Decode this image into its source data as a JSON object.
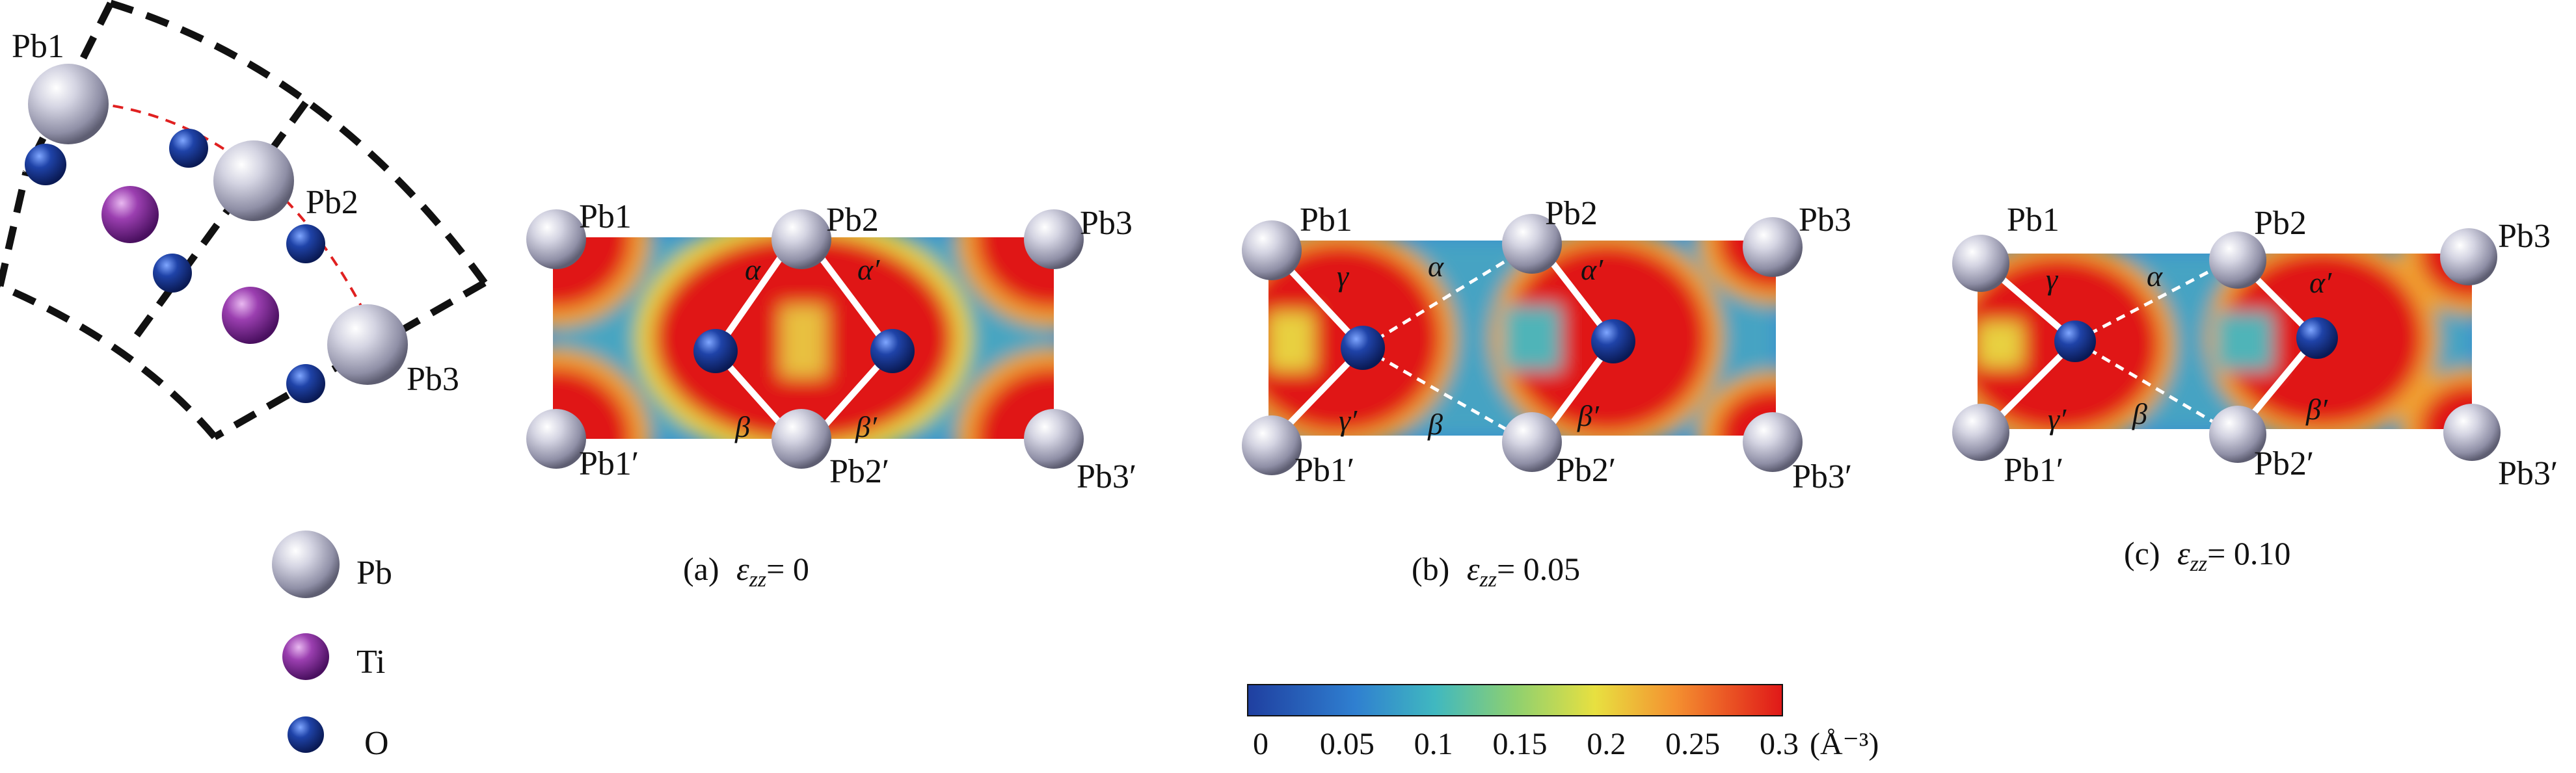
{
  "legend": {
    "items": [
      {
        "label": "Pb",
        "color": "#b9b9cc"
      },
      {
        "label": "Ti",
        "color": "#8a2a9e"
      },
      {
        "label": "O",
        "color": "#1a3a8c"
      }
    ]
  },
  "unit_cell": {
    "labels": [
      "Pb1",
      "Pb2",
      "Pb3"
    ]
  },
  "panels": [
    {
      "caption_prefix": "(a)",
      "symbol": "ε",
      "subscript": "zz",
      "value": "= 0",
      "atom_labels": {
        "tl": "Pb1",
        "tm": "Pb2",
        "tr": "Pb3",
        "bl": "Pb1′",
        "bm": "Pb2′",
        "br": "Pb3′"
      },
      "angles": {
        "a": "α",
        "a2": "α′",
        "b": "β",
        "b2": "β′"
      }
    },
    {
      "caption_prefix": "(b)",
      "symbol": "ε",
      "subscript": "zz",
      "value": "= 0.05",
      "atom_labels": {
        "tl": "Pb1",
        "tm": "Pb2",
        "tr": "Pb3",
        "bl": "Pb1′",
        "bm": "Pb2′",
        "br": "Pb3′"
      },
      "angles": {
        "g": "γ",
        "g2": "γ′",
        "a": "α",
        "a2": "α′",
        "b": "β",
        "b2": "β′"
      }
    },
    {
      "caption_prefix": "(c)",
      "symbol": "ε",
      "subscript": "zz",
      "value": "= 0.10",
      "atom_labels": {
        "tl": "Pb1",
        "tm": "Pb2",
        "tr": "Pb3",
        "bl": "Pb1′",
        "bm": "Pb2′",
        "br": "Pb3′"
      },
      "angles": {
        "g": "γ",
        "g2": "γ′",
        "a": "α",
        "a2": "α′",
        "b": "β",
        "b2": "β′"
      }
    }
  ],
  "colorbar": {
    "ticks": [
      "0",
      "0.05",
      "0.1",
      "0.15",
      "0.2",
      "0.25",
      "0.3"
    ],
    "unit": "(Å⁻³)",
    "range": [
      0,
      0.3
    ]
  }
}
